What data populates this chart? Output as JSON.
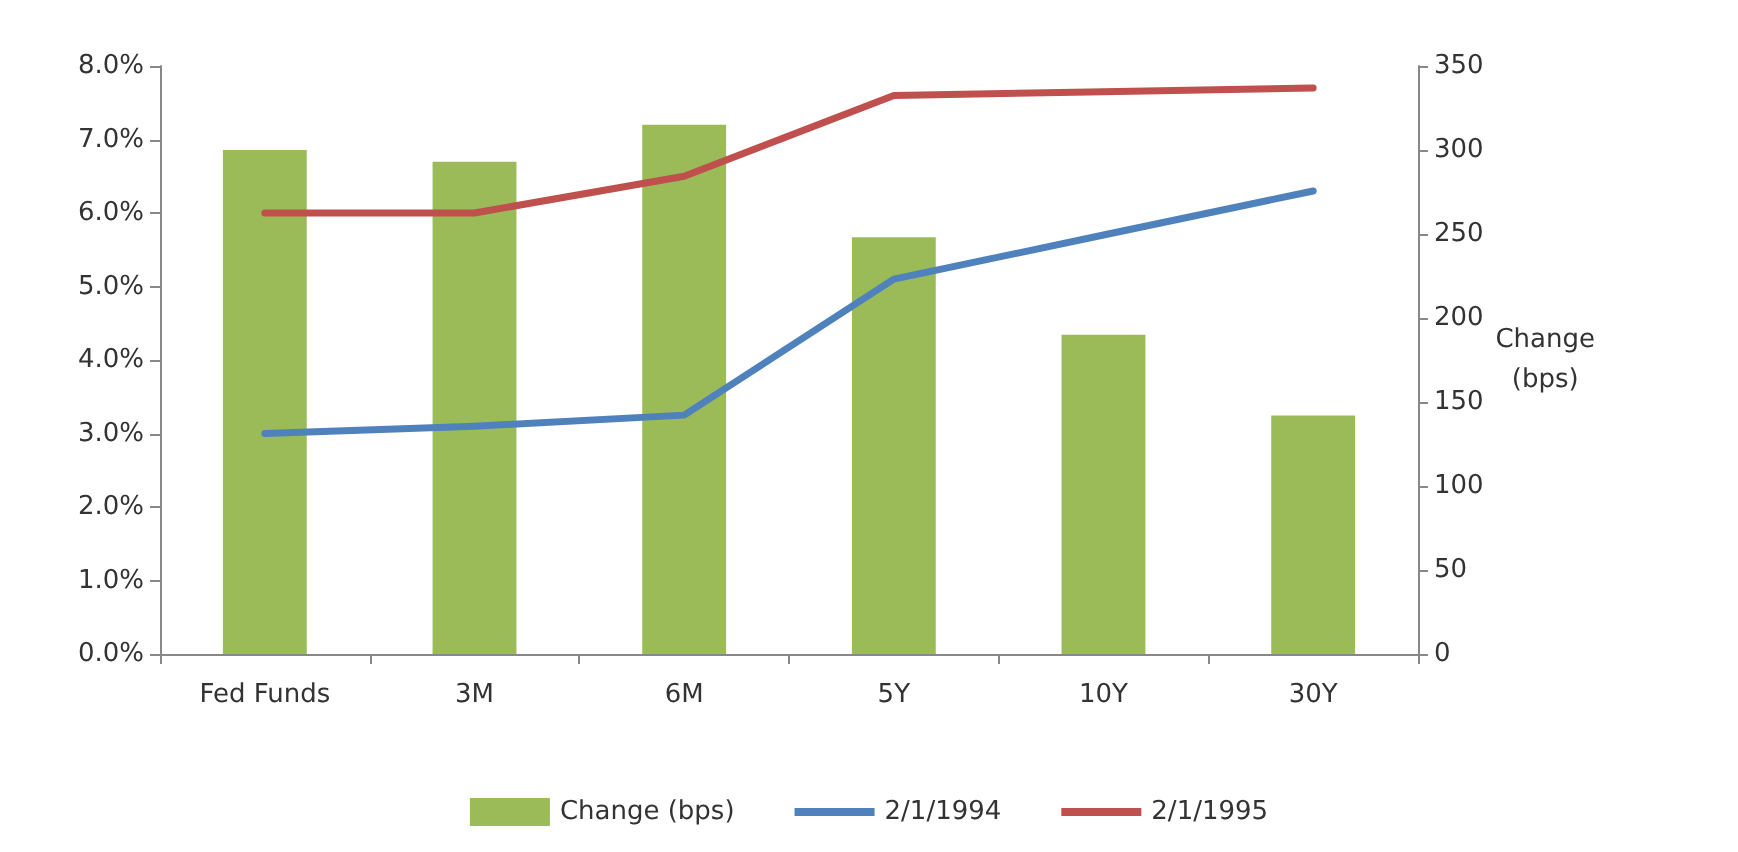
{
  "chart_data": {
    "type": "bar",
    "categories": [
      "Fed Funds",
      "3M",
      "6M",
      "5Y",
      "10Y",
      "30Y"
    ],
    "series": [
      {
        "name": "Change (bps)",
        "axis": "y2",
        "color": "#9bbb59",
        "values": [
          300,
          293,
          315,
          248,
          190,
          142
        ]
      },
      {
        "name": "2/1/1994",
        "type": "line",
        "color": "#4f81bd",
        "values": [
          3.0,
          3.1,
          3.25,
          5.1,
          5.7,
          6.3
        ]
      },
      {
        "name": "2/1/1995",
        "type": "line",
        "color": "#c0504d",
        "values": [
          6.0,
          6.0,
          6.5,
          7.6,
          7.65,
          7.7
        ]
      }
    ],
    "ylim": [
      0,
      8
    ],
    "yticks": [
      {
        "value": 0,
        "label": "0.0%"
      },
      {
        "value": 1,
        "label": "1.0%"
      },
      {
        "value": 2,
        "label": "2.0%"
      },
      {
        "value": 3,
        "label": "3.0%"
      },
      {
        "value": 4,
        "label": "4.0%"
      },
      {
        "value": 5,
        "label": "5.0%"
      },
      {
        "value": 6,
        "label": "6.0%"
      },
      {
        "value": 7,
        "label": "7.0%"
      },
      {
        "value": 8,
        "label": "8.0%"
      }
    ],
    "y2lim": [
      0,
      350
    ],
    "y2ticks": [
      0,
      50,
      100,
      150,
      200,
      250,
      300,
      350
    ],
    "y2label": "Change (bps)",
    "grid": false,
    "legend": "bottom",
    "marker": "none",
    "line_style": "solid"
  }
}
